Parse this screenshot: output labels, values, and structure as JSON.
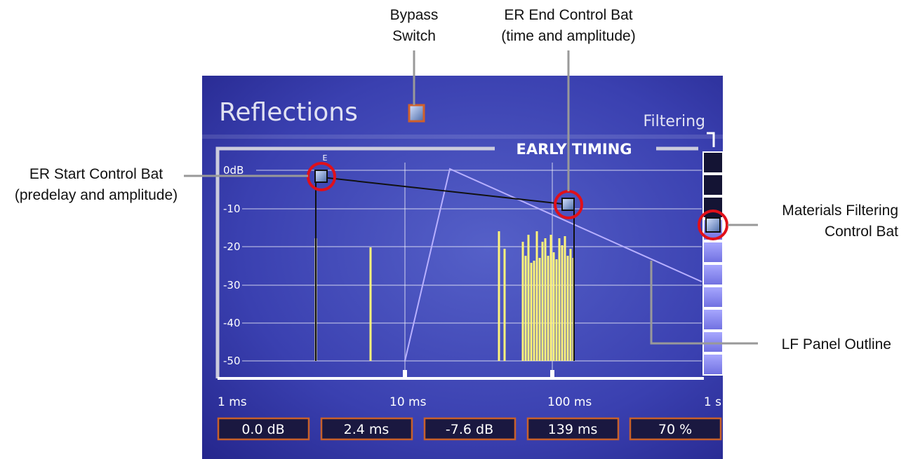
{
  "callouts": {
    "bypass": [
      "Bypass",
      "Switch"
    ],
    "er_end": [
      "ER End Control Bat",
      "(time and amplitude)"
    ],
    "er_start": [
      "ER Start Control Bat",
      "(predelay and amplitude)"
    ],
    "materials": [
      "Materials Filtering",
      "Control Bat"
    ],
    "lf_panel": "LF Panel Outline"
  },
  "panel": {
    "title": "Reflections",
    "filtering": "Filtering",
    "section": "EARLY TIMING",
    "marker": "E",
    "y_labels": [
      "0dB",
      "-10",
      "-20",
      "-30",
      "-40",
      "-50"
    ],
    "x_labels": [
      "1 ms",
      "10 ms",
      "100 ms",
      "1 s"
    ],
    "readouts": [
      "0.0 dB",
      "2.4 ms",
      "-7.6 dB",
      "139 ms",
      "70 %"
    ]
  }
}
